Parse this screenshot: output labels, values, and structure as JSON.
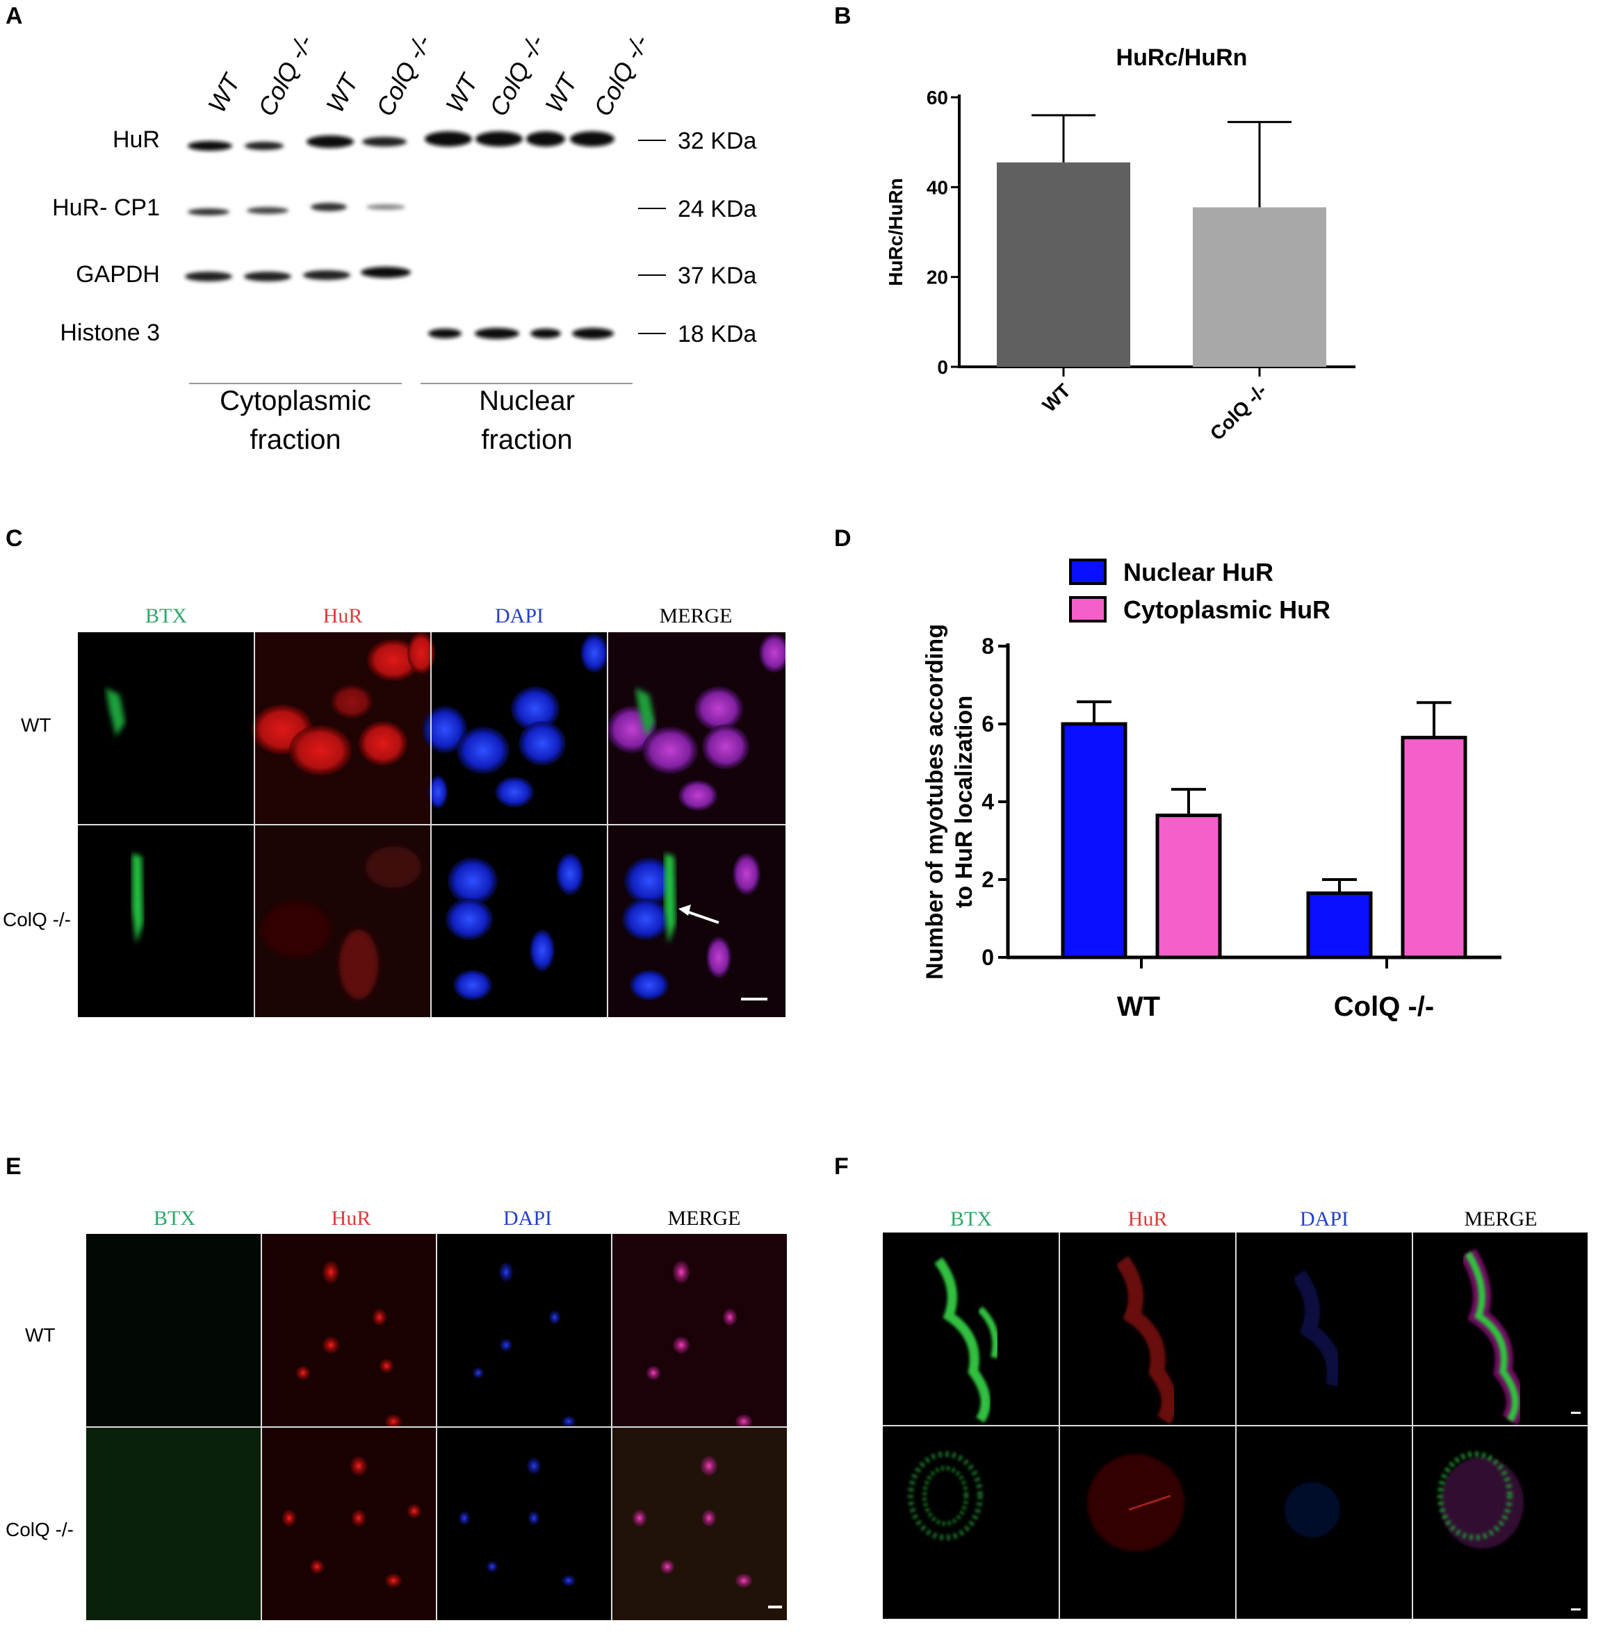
{
  "panels": {
    "a": {
      "letter": "A",
      "lanes": [
        "WT",
        "ColQ -/-",
        "WT",
        "ColQ -/-",
        "WT",
        "ColQ -/-",
        "WT",
        "ColQ -/-"
      ],
      "proteins": [
        "HuR",
        "HuR- CP1",
        "GAPDH",
        "Histone 3"
      ],
      "sizes": [
        "32 KDa",
        "24 KDa",
        "37 KDa",
        "18 KDa"
      ],
      "fractions": [
        {
          "line1": "Cytoplasmic",
          "line2": "fraction"
        },
        {
          "line1": "Nuclear",
          "line2": "fraction"
        }
      ]
    },
    "b": {
      "letter": "B"
    },
    "c": {
      "letter": "C",
      "channels": [
        "BTX",
        "HuR",
        "DAPI",
        "MERGE"
      ],
      "rows": [
        "WT",
        "ColQ -/-"
      ]
    },
    "d": {
      "letter": "D"
    },
    "e": {
      "letter": "E",
      "channels": [
        "BTX",
        "HuR",
        "DAPI",
        "MERGE"
      ],
      "rows": [
        "WT",
        "ColQ -/-"
      ]
    },
    "f": {
      "letter": "F",
      "channels": [
        "BTX",
        "HuR",
        "DAPI",
        "MERGE"
      ]
    }
  },
  "colors": {
    "btx": "#2fa66a",
    "hur": "#e03a3a",
    "dapi": "#2540c8",
    "merge": "#000000",
    "nuclear_bar": "#0a10ff",
    "cytoplasmic_bar": "#f560c8",
    "wt_bar": "#606060",
    "colq_bar": "#a8a8a8"
  },
  "chart_data": [
    {
      "type": "bar",
      "panel": "B",
      "title": "HuRc/HuRn",
      "ylabel": "HuRc/HuRn",
      "xlabel": "",
      "categories": [
        "WT",
        "ColQ -/-"
      ],
      "values": [
        45.5,
        35.5
      ],
      "errors": [
        10.5,
        19
      ],
      "ylim": [
        0,
        60
      ],
      "yticks": [
        "0",
        "20",
        "40",
        "60"
      ]
    },
    {
      "type": "bar",
      "panel": "D",
      "title": "",
      "ylabel": "Number of myotubes according to HuR localization",
      "ylabel_lines": [
        "Number of myotubes according",
        "to HuR localization"
      ],
      "xlabel": "",
      "categories": [
        "WT",
        "ColQ -/-"
      ],
      "series": [
        {
          "name": "Nuclear HuR",
          "values": [
            6.0,
            1.65
          ],
          "errors": [
            0.57,
            0.35
          ]
        },
        {
          "name": "Cytoplasmic HuR",
          "values": [
            3.65,
            5.65
          ],
          "errors": [
            0.67,
            0.9
          ]
        }
      ],
      "ylim": [
        0,
        8
      ],
      "yticks": [
        "0",
        "2",
        "4",
        "6",
        "8"
      ],
      "legend": "top"
    }
  ]
}
